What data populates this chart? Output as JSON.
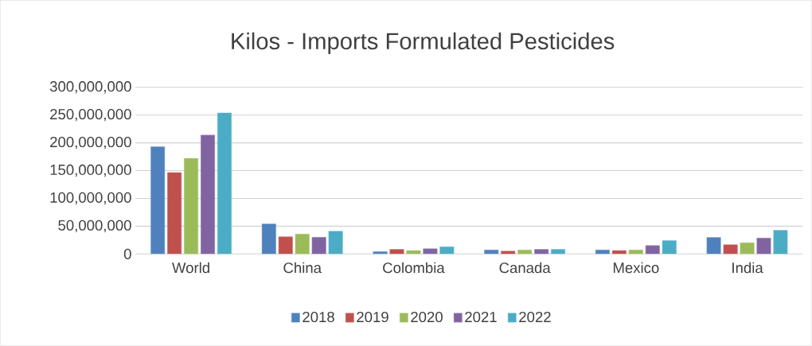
{
  "chart_data": {
    "type": "bar",
    "title": "Kilos - Imports Formulated Pesticides",
    "categories": [
      "World",
      "China",
      "Colombia",
      "Canada",
      "Mexico",
      "India"
    ],
    "series": [
      {
        "name": "2018",
        "color": "#4f81bd",
        "values": [
          193000000,
          54000000,
          4200000,
          7300000,
          7300000,
          29700000
        ]
      },
      {
        "name": "2019",
        "color": "#c0504d",
        "values": [
          146600000,
          31000000,
          8300000,
          5200000,
          6200000,
          16700000
        ]
      },
      {
        "name": "2020",
        "color": "#9bbb59",
        "values": [
          172400000,
          35800000,
          6200000,
          7300000,
          7300000,
          20300000
        ]
      },
      {
        "name": "2021",
        "color": "#8064a2",
        "values": [
          214000000,
          30000000,
          9400000,
          8300000,
          15100000,
          28600000
        ]
      },
      {
        "name": "2022",
        "color": "#4bacc6",
        "values": [
          254000000,
          41000000,
          13000000,
          8300000,
          24000000,
          42700000
        ]
      }
    ],
    "ylim": [
      0,
      300000000
    ],
    "yticks": [
      {
        "value": 0,
        "label": "0"
      },
      {
        "value": 50000000,
        "label": "50,000,000"
      },
      {
        "value": 100000000,
        "label": "100,000,000"
      },
      {
        "value": 150000000,
        "label": "150,000,000"
      },
      {
        "value": 200000000,
        "label": "200,000,000"
      },
      {
        "value": 250000000,
        "label": "250,000,000"
      },
      {
        "value": 300000000,
        "label": "300,000,000"
      }
    ],
    "grid": "y",
    "legend": "bottom"
  }
}
